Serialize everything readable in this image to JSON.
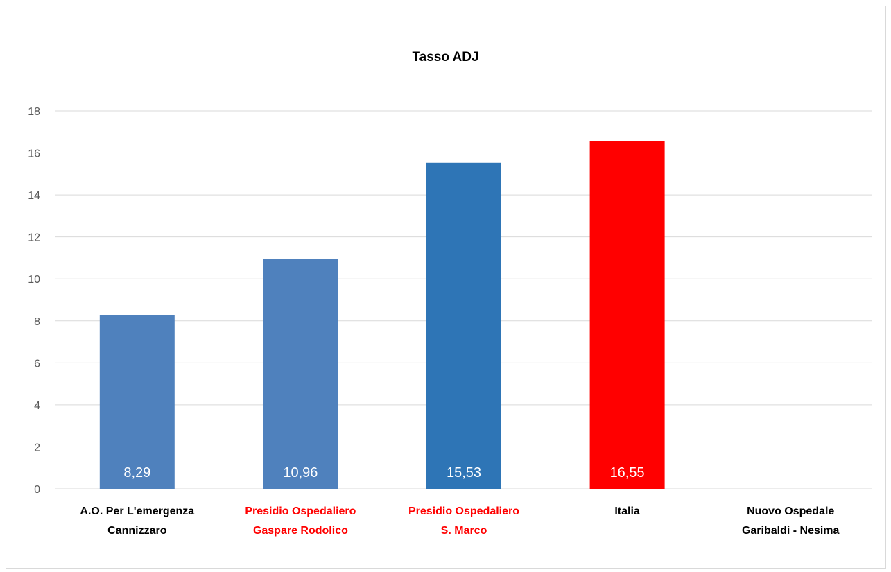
{
  "chart_data": {
    "type": "bar",
    "title": "Tasso ADJ",
    "xlabel": "",
    "ylabel": "",
    "ylim": [
      0,
      18
    ],
    "yticks": [
      0,
      2,
      4,
      6,
      8,
      10,
      12,
      14,
      16,
      18
    ],
    "grid": true,
    "legend": "none",
    "categories": [
      [
        "A.O. Per L'emergenza",
        "Cannizzaro"
      ],
      [
        "Presidio Ospedaliero",
        "Gaspare Rodolico"
      ],
      [
        "Presidio Ospedaliero",
        "S. Marco"
      ],
      [
        "Italia"
      ],
      [
        "Nuovo Ospedale",
        "Garibaldi - Nesima"
      ]
    ],
    "values": [
      8.29,
      10.96,
      15.53,
      16.55,
      null
    ],
    "data_labels": [
      "8,29",
      "10,96",
      "15,53",
      "16,55",
      ""
    ],
    "bar_colors": [
      "#4f81bd",
      "#4f81bd",
      "#2e75b6",
      "#ff0000",
      "#4f81bd"
    ],
    "label_colors": [
      "#000000",
      "#ff0000",
      "#ff0000",
      "#000000",
      "#000000"
    ]
  }
}
